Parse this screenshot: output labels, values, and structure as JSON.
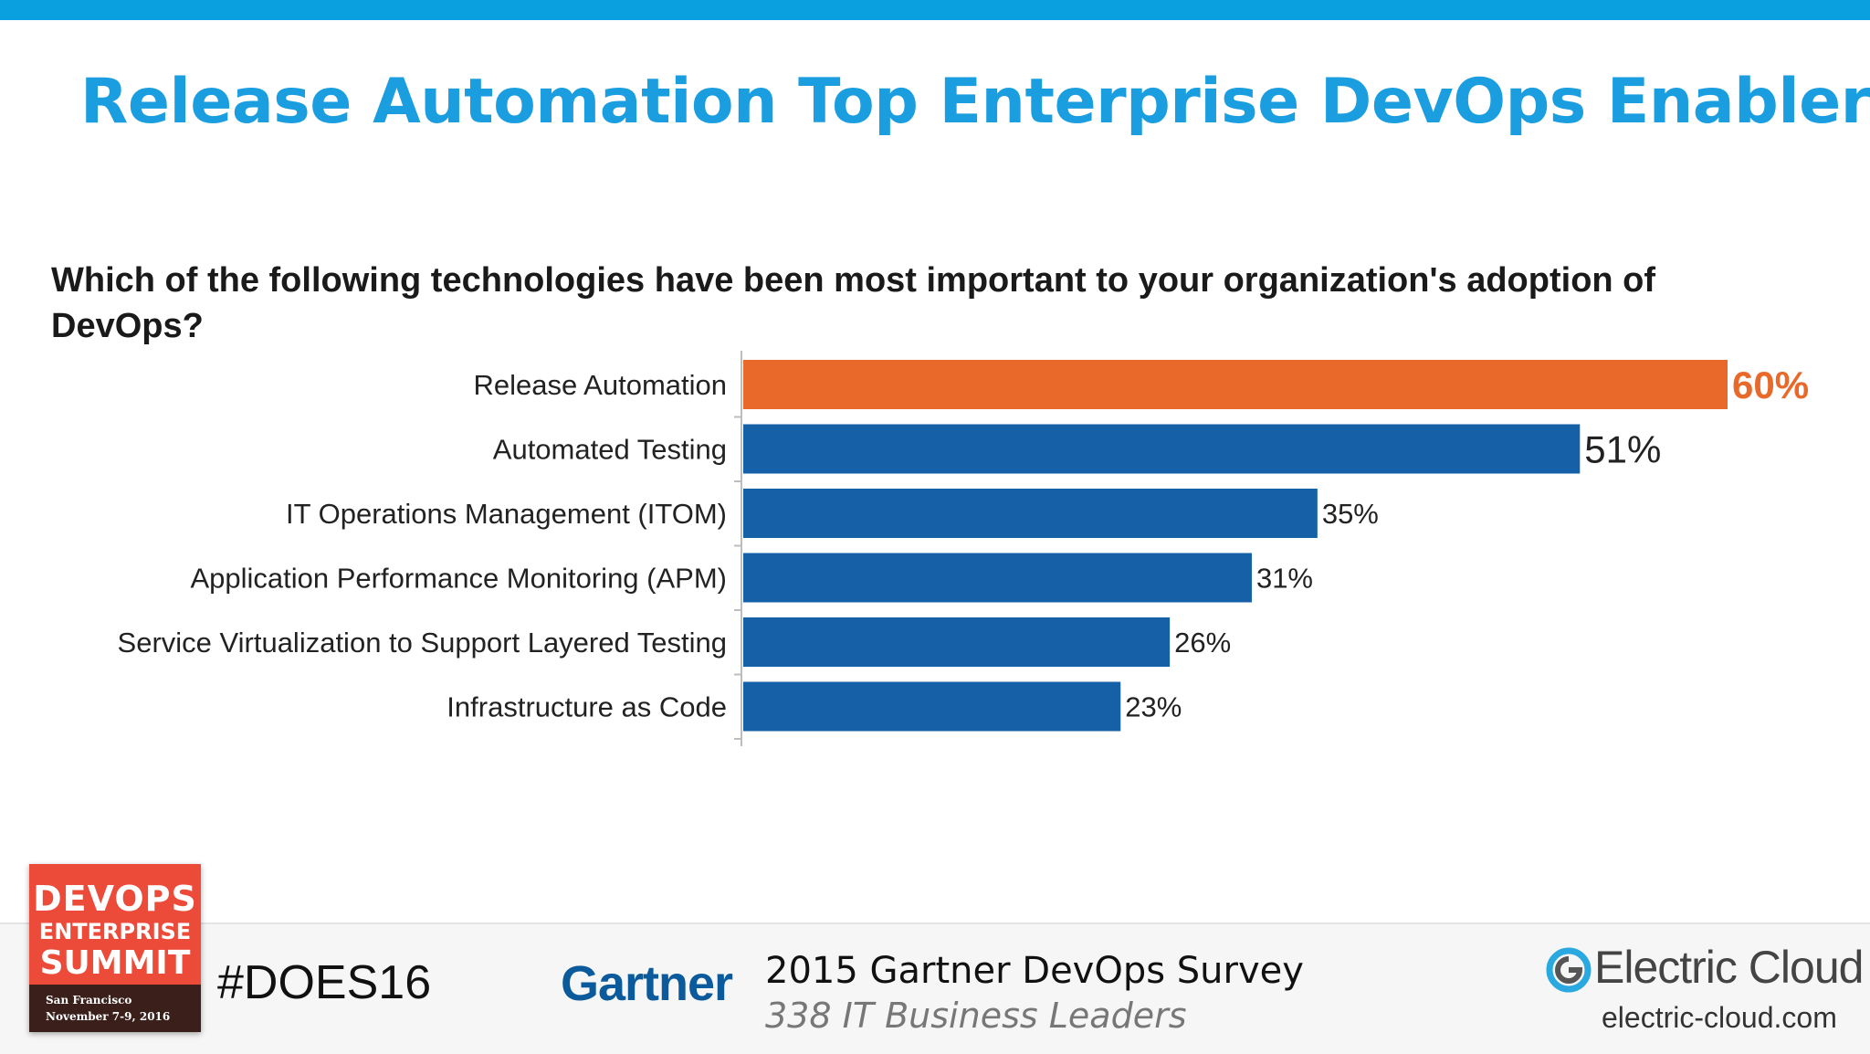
{
  "slide": {
    "title": "Release Automation Top Enterprise DevOps Enabler",
    "question": "Which of the following technologies have been most important to your organization's adoption of DevOps?"
  },
  "chart_data": {
    "type": "bar",
    "orientation": "horizontal",
    "categories": [
      "Release Automation",
      "Automated Testing",
      "IT Operations Management (ITOM)",
      "Application Performance Monitoring (APM)",
      "Service Virtualization to Support Layered Testing",
      "Infrastructure as Code"
    ],
    "values": [
      60,
      51,
      35,
      31,
      26,
      23
    ],
    "data_labels": [
      "60%",
      "51%",
      "35%",
      "31%",
      "26%",
      "23%"
    ],
    "unit": "%",
    "highlight_index": 0,
    "colors": {
      "highlight": "#e8692a",
      "default": "#1660a8"
    },
    "xlim": [
      0,
      60
    ],
    "grid": false,
    "legend": "none"
  },
  "footer": {
    "logo": {
      "line1": "DEVOPS",
      "line2": "ENTERPRISE",
      "line3": "SUMMIT",
      "city": "San Francisco",
      "dates": "November 7-9, 2016"
    },
    "hashtag": "#DOES16",
    "gartner": "Gartner",
    "survey_title": "2015 Gartner DevOps Survey",
    "survey_subtitle": "338 IT Business Leaders",
    "brand": "Electric Cloud",
    "brand_url": "electric-cloud.com",
    "brand_icon": "electric-cloud-icon"
  }
}
